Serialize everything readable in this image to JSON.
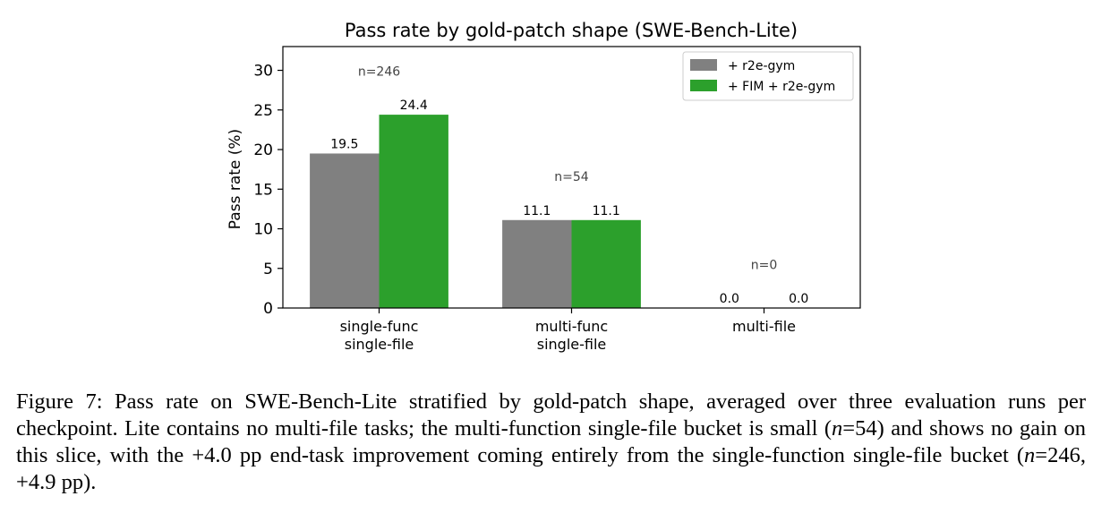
{
  "chart_data": {
    "type": "bar",
    "title": "Pass rate by gold-patch shape (SWE-Bench-Lite)",
    "xlabel": "",
    "ylabel": "Pass rate (%)",
    "ylim": [
      0,
      33
    ],
    "yticks": [
      0,
      5,
      10,
      15,
      20,
      25,
      30
    ],
    "categories": [
      [
        "single-func",
        "single-file"
      ],
      [
        "multi-func",
        "single-file"
      ],
      [
        "multi-file"
      ]
    ],
    "group_annotations": [
      "n=246",
      "n=54",
      "n=0"
    ],
    "series": [
      {
        "name": "+ r2e-gym",
        "color": "#808080",
        "values": [
          19.5,
          11.1,
          0.0
        ],
        "labels": [
          "19.5",
          "11.1",
          "0.0"
        ]
      },
      {
        "name": "+ FIM + r2e-gym",
        "color": "#2ca02c",
        "values": [
          24.4,
          11.1,
          0.0
        ],
        "labels": [
          "24.4",
          "11.1",
          "0.0"
        ]
      }
    ],
    "legend_position": "top-right",
    "grid": false
  },
  "caption": {
    "label": "Figure 7:",
    "text": "Pass rate on SWE-Bench-Lite stratified by gold-patch shape, averaged over three evaluation runs per checkpoint. Lite contains no multi-file tasks; the multi-function single-file bucket is small (n=54) and shows no gain on this slice, with the +4.0 pp end-task improvement coming entirely from the single-function single-file bucket (n=246, +4.9 pp)."
  }
}
